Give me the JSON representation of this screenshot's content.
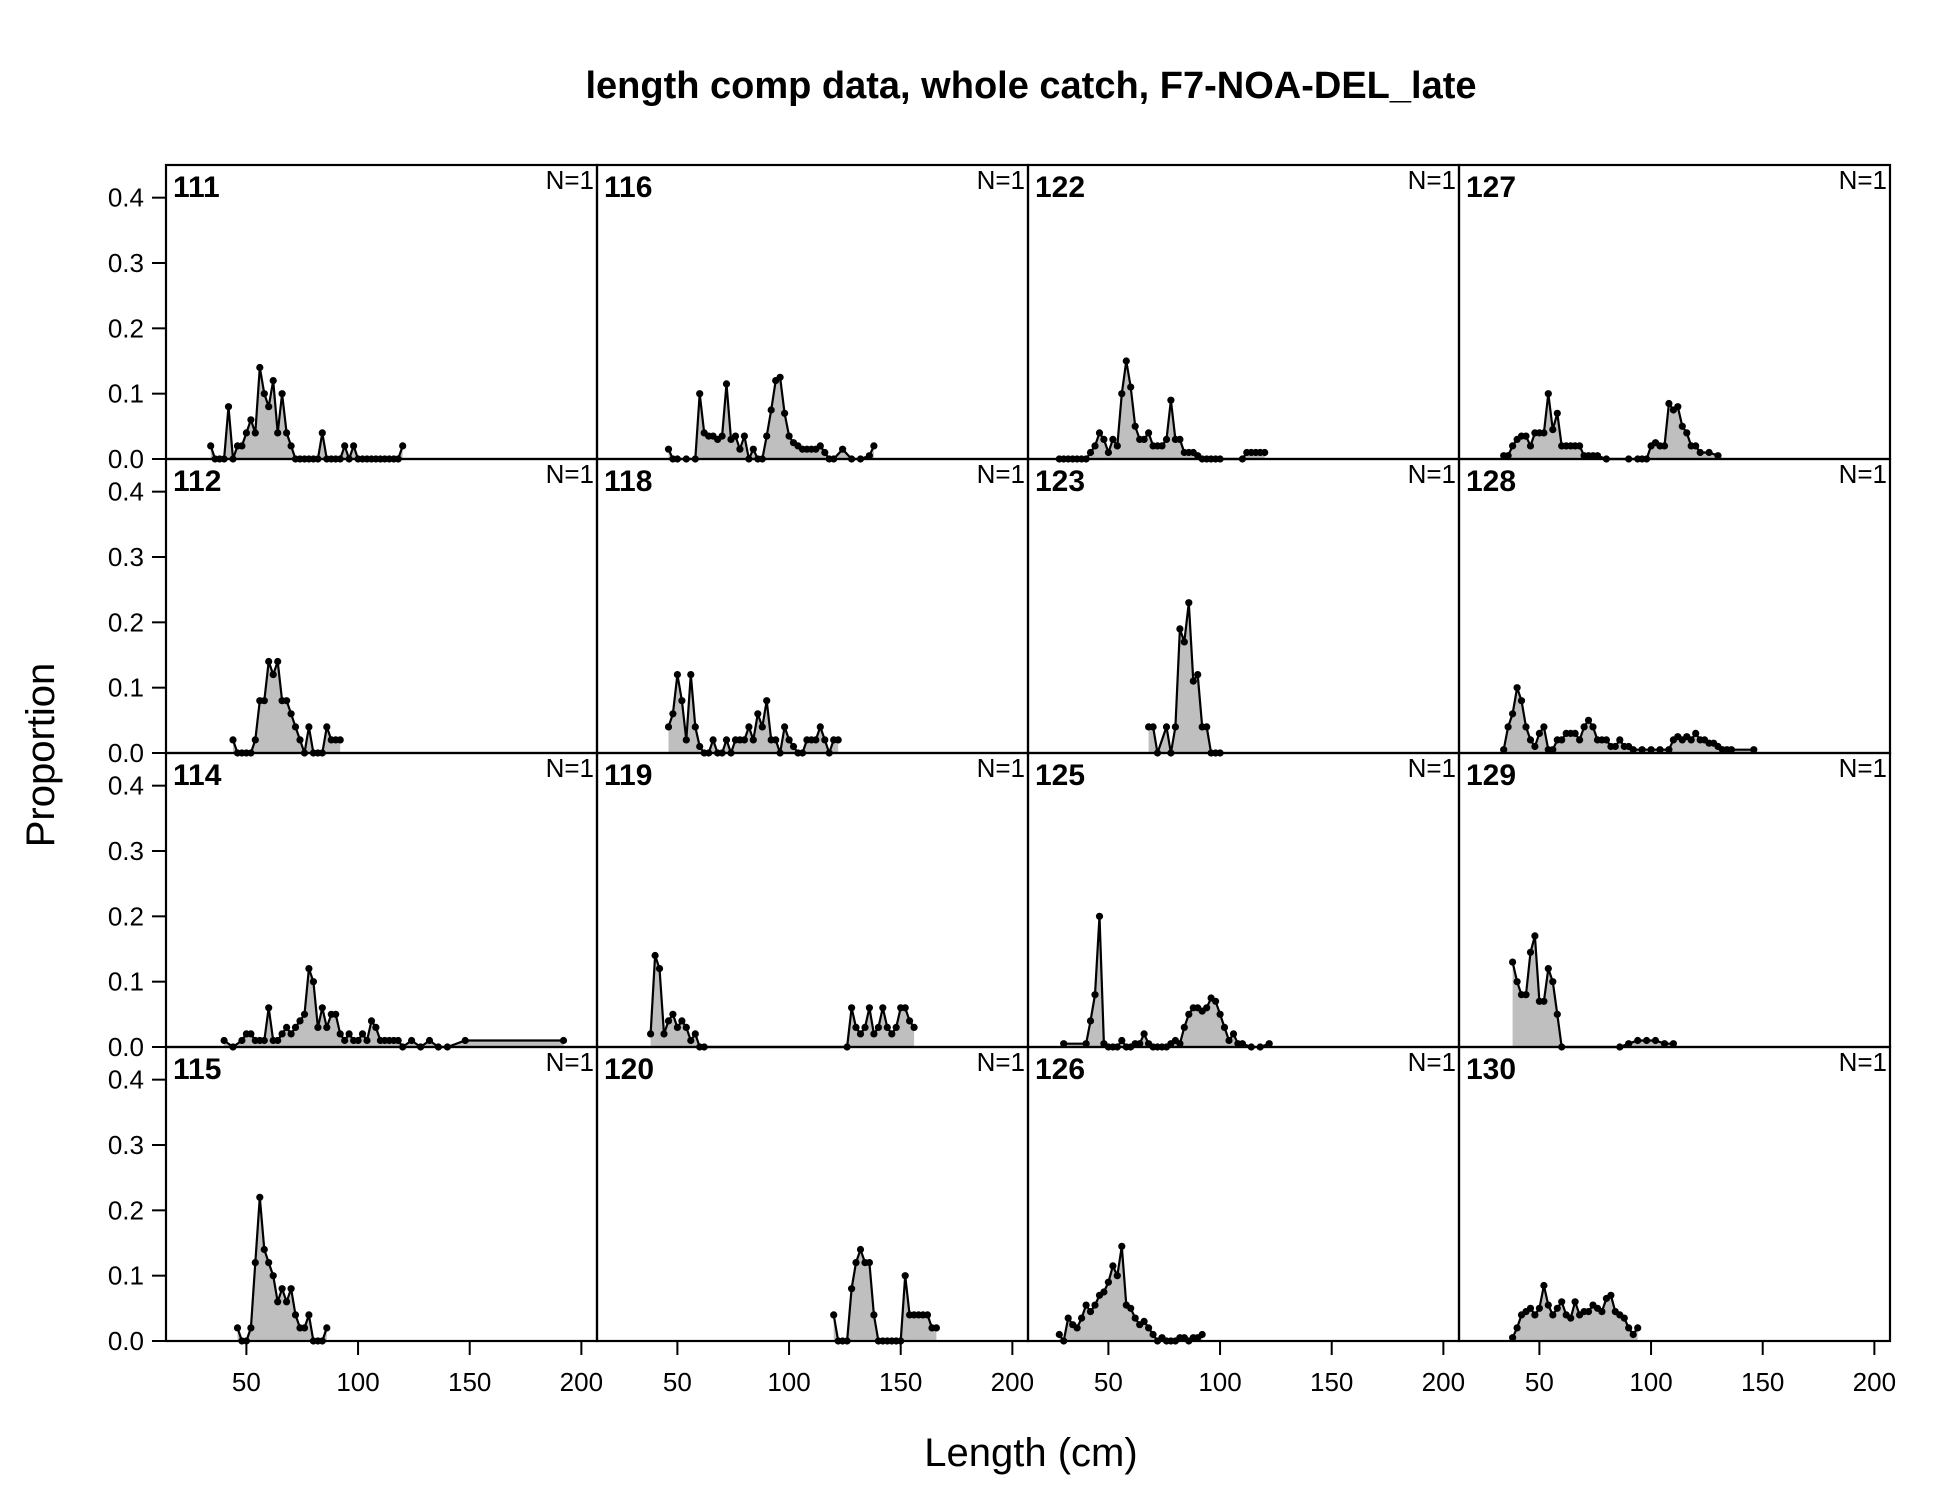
{
  "chart_data": {
    "type": "area",
    "title": "length comp data, whole catch, F7-NOA-DEL_late",
    "xlabel": "Length (cm)",
    "ylabel": "Proportion",
    "xlim": [
      14,
      207
    ],
    "ylim": [
      0,
      0.45
    ],
    "x_ticks": [
      50,
      100,
      150,
      200
    ],
    "x_tick_labels": [
      "50",
      "100",
      "150",
      "200"
    ],
    "y_ticks": [
      0,
      0.1,
      0.2,
      0.3,
      0.4
    ],
    "y_tick_labels": [
      "0.0",
      "0.1",
      "0.2",
      "0.3",
      "0.4"
    ],
    "layout": "4x4 grid, column-major",
    "fill_color": "#bfbfbf",
    "line_color": "#000000",
    "panels": [
      {
        "label": "111",
        "n_label": "N=1",
        "x": [
          34,
          36,
          38,
          40,
          42,
          44,
          46,
          48,
          50,
          52,
          54,
          56,
          58,
          60,
          62,
          64,
          66,
          68,
          70,
          72,
          74,
          76,
          78,
          80,
          82,
          84,
          86,
          88,
          90,
          92,
          94,
          96,
          98,
          100,
          102,
          104,
          106,
          108,
          110,
          112,
          114,
          116,
          118,
          120
        ],
        "y": [
          0.02,
          0,
          0,
          0,
          0.08,
          0,
          0.02,
          0.02,
          0.04,
          0.06,
          0.04,
          0.14,
          0.1,
          0.08,
          0.12,
          0.04,
          0.1,
          0.04,
          0.02,
          0,
          0,
          0,
          0,
          0,
          0,
          0.04,
          0,
          0,
          0,
          0,
          0.02,
          0,
          0.02,
          0,
          0,
          0,
          0,
          0,
          0,
          0,
          0,
          0,
          0,
          0.02
        ]
      },
      {
        "label": "112",
        "n_label": "N=1",
        "x": [
          44,
          46,
          48,
          50,
          52,
          54,
          56,
          58,
          60,
          62,
          64,
          66,
          68,
          70,
          72,
          74,
          76,
          78,
          80,
          82,
          84,
          86,
          88,
          90,
          92
        ],
        "y": [
          0.02,
          0,
          0,
          0,
          0,
          0.02,
          0.08,
          0.08,
          0.14,
          0.12,
          0.14,
          0.08,
          0.08,
          0.06,
          0.04,
          0.02,
          0,
          0.04,
          0,
          0,
          0,
          0.04,
          0.02,
          0.02,
          0.02
        ]
      },
      {
        "label": "114",
        "n_label": "N=1",
        "x": [
          40,
          44,
          48,
          50,
          52,
          54,
          56,
          58,
          60,
          62,
          64,
          66,
          68,
          70,
          72,
          74,
          76,
          78,
          80,
          82,
          84,
          86,
          88,
          90,
          92,
          94,
          96,
          98,
          100,
          102,
          104,
          106,
          108,
          110,
          112,
          114,
          116,
          118,
          120,
          124,
          128,
          132,
          136,
          140,
          148,
          192
        ],
        "y": [
          0.01,
          0,
          0.01,
          0.02,
          0.02,
          0.01,
          0.01,
          0.01,
          0.06,
          0.01,
          0.01,
          0.02,
          0.03,
          0.02,
          0.03,
          0.04,
          0.05,
          0.12,
          0.1,
          0.03,
          0.06,
          0.03,
          0.05,
          0.05,
          0.02,
          0.01,
          0.02,
          0.01,
          0.01,
          0.02,
          0.01,
          0.04,
          0.03,
          0.01,
          0.01,
          0.01,
          0.01,
          0.01,
          0,
          0.01,
          0,
          0.01,
          0,
          0,
          0.01,
          0.01
        ]
      },
      {
        "label": "115",
        "n_label": "N=1",
        "x": [
          46,
          48,
          50,
          52,
          54,
          56,
          58,
          60,
          62,
          64,
          66,
          68,
          70,
          72,
          74,
          76,
          78,
          80,
          82,
          84,
          86
        ],
        "y": [
          0.02,
          0,
          0,
          0.02,
          0.12,
          0.22,
          0.14,
          0.12,
          0.1,
          0.06,
          0.08,
          0.06,
          0.08,
          0.04,
          0.02,
          0.02,
          0.04,
          0,
          0,
          0,
          0.02
        ]
      },
      {
        "label": "116",
        "n_label": "N=1",
        "x": [
          46,
          48,
          50,
          54,
          58,
          60,
          62,
          64,
          66,
          68,
          70,
          72,
          74,
          76,
          78,
          80,
          82,
          84,
          86,
          88,
          90,
          92,
          94,
          96,
          98,
          100,
          102,
          104,
          106,
          108,
          110,
          112,
          114,
          116,
          118,
          120,
          124,
          128,
          132,
          136,
          138
        ],
        "y": [
          0.015,
          0,
          0,
          0,
          0,
          0.1,
          0.04,
          0.035,
          0.035,
          0.03,
          0.035,
          0.115,
          0.03,
          0.035,
          0.015,
          0.035,
          0,
          0.015,
          0,
          0,
          0.035,
          0.075,
          0.12,
          0.125,
          0.07,
          0.035,
          0.025,
          0.02,
          0.015,
          0.015,
          0.015,
          0.015,
          0.02,
          0.01,
          0,
          0,
          0.015,
          0,
          0,
          0.005,
          0.02
        ]
      },
      {
        "label": "118",
        "n_label": "N=1",
        "x": [
          46,
          48,
          50,
          52,
          54,
          56,
          58,
          60,
          62,
          64,
          66,
          68,
          70,
          72,
          74,
          76,
          78,
          80,
          82,
          84,
          86,
          88,
          90,
          92,
          94,
          96,
          98,
          100,
          102,
          104,
          106,
          108,
          110,
          112,
          114,
          116,
          118,
          120,
          122
        ],
        "y": [
          0.04,
          0.06,
          0.12,
          0.08,
          0.02,
          0.12,
          0.04,
          0.01,
          0,
          0,
          0.02,
          0,
          0,
          0.02,
          0,
          0.02,
          0.02,
          0.02,
          0.04,
          0.02,
          0.06,
          0.04,
          0.08,
          0.02,
          0.02,
          0,
          0.04,
          0.02,
          0.01,
          0,
          0,
          0.02,
          0.02,
          0.02,
          0.04,
          0.02,
          0,
          0.02,
          0.02
        ]
      },
      {
        "label": "119",
        "n_label": "N=1",
        "x": [
          38,
          40,
          42,
          44,
          46,
          48,
          50,
          52,
          54,
          56,
          58,
          60,
          62,
          126,
          128,
          130,
          132,
          134,
          136,
          138,
          140,
          142,
          144,
          146,
          148,
          150,
          152,
          154,
          156
        ],
        "y": [
          0.02,
          0.14,
          0.12,
          0.02,
          0.04,
          0.05,
          0.03,
          0.04,
          0.03,
          0.01,
          0.02,
          0,
          0,
          0,
          0.06,
          0.03,
          0.02,
          0.03,
          0.06,
          0.02,
          0.03,
          0.06,
          0.03,
          0.02,
          0.03,
          0.06,
          0.06,
          0.04,
          0.03
        ]
      },
      {
        "label": "120",
        "n_label": "N=1",
        "x": [
          120,
          122,
          124,
          126,
          128,
          130,
          132,
          134,
          136,
          138,
          140,
          142,
          144,
          146,
          148,
          150,
          152,
          154,
          156,
          158,
          160,
          162,
          164,
          166
        ],
        "y": [
          0.04,
          0,
          0,
          0,
          0.08,
          0.12,
          0.14,
          0.12,
          0.12,
          0.04,
          0,
          0,
          0,
          0,
          0,
          0,
          0.1,
          0.04,
          0.04,
          0.04,
          0.04,
          0.04,
          0.02,
          0.02
        ]
      },
      {
        "label": "122",
        "n_label": "N=1",
        "x": [
          28,
          30,
          32,
          34,
          36,
          38,
          40,
          42,
          44,
          46,
          48,
          50,
          52,
          54,
          56,
          58,
          60,
          62,
          64,
          66,
          68,
          70,
          72,
          74,
          76,
          78,
          80,
          82,
          84,
          86,
          88,
          90,
          92,
          94,
          96,
          98,
          100,
          110,
          112,
          114,
          116,
          118,
          120
        ],
        "y": [
          0,
          0,
          0,
          0,
          0,
          0,
          0,
          0.01,
          0.02,
          0.04,
          0.03,
          0.01,
          0.03,
          0.02,
          0.1,
          0.15,
          0.11,
          0.05,
          0.03,
          0.03,
          0.04,
          0.02,
          0.02,
          0.02,
          0.03,
          0.09,
          0.03,
          0.03,
          0.01,
          0.01,
          0.01,
          0.005,
          0,
          0,
          0,
          0,
          0,
          0,
          0.01,
          0.01,
          0.01,
          0.01,
          0.01
        ]
      },
      {
        "label": "123",
        "n_label": "N=1",
        "x": [
          68,
          70,
          72,
          76,
          78,
          80,
          82,
          84,
          86,
          88,
          90,
          92,
          94,
          96,
          98,
          100
        ],
        "y": [
          0.04,
          0.04,
          0,
          0.04,
          0,
          0.04,
          0.19,
          0.17,
          0.23,
          0.11,
          0.12,
          0.04,
          0.04,
          0,
          0,
          0
        ]
      },
      {
        "label": "125",
        "n_label": "N=1",
        "x": [
          30,
          40,
          42,
          44,
          46,
          48,
          50,
          52,
          54,
          56,
          58,
          60,
          62,
          64,
          66,
          68,
          70,
          72,
          74,
          76,
          78,
          80,
          82,
          84,
          86,
          88,
          90,
          92,
          94,
          96,
          98,
          100,
          102,
          104,
          106,
          108,
          110,
          114,
          118,
          122
        ],
        "y": [
          0.005,
          0.005,
          0.04,
          0.08,
          0.2,
          0.005,
          0,
          0,
          0,
          0.01,
          0,
          0,
          0.005,
          0.005,
          0.02,
          0.005,
          0,
          0,
          0,
          0,
          0.005,
          0.01,
          0.005,
          0.03,
          0.05,
          0.06,
          0.06,
          0.055,
          0.06,
          0.075,
          0.07,
          0.05,
          0.03,
          0.01,
          0.02,
          0.005,
          0.005,
          0,
          0,
          0.005
        ]
      },
      {
        "label": "126",
        "n_label": "N=1",
        "x": [
          28,
          30,
          32,
          34,
          36,
          38,
          40,
          42,
          44,
          46,
          48,
          50,
          52,
          54,
          56,
          58,
          60,
          62,
          64,
          66,
          68,
          70,
          72,
          74,
          76,
          78,
          80,
          82,
          84,
          86,
          88,
          90,
          92
        ],
        "y": [
          0.01,
          0,
          0.035,
          0.025,
          0.02,
          0.035,
          0.055,
          0.045,
          0.055,
          0.07,
          0.075,
          0.09,
          0.115,
          0.1,
          0.145,
          0.055,
          0.05,
          0.035,
          0.025,
          0.03,
          0.02,
          0.01,
          0,
          0.005,
          0,
          0,
          0,
          0.005,
          0.005,
          0,
          0.005,
          0.005,
          0.01
        ]
      },
      {
        "label": "127",
        "n_label": "N=1",
        "x": [
          34,
          36,
          38,
          40,
          42,
          44,
          46,
          48,
          50,
          52,
          54,
          56,
          58,
          60,
          62,
          64,
          66,
          68,
          70,
          72,
          74,
          76,
          80,
          90,
          94,
          96,
          98,
          100,
          102,
          104,
          106,
          108,
          110,
          112,
          114,
          116,
          118,
          120,
          122,
          126,
          130
        ],
        "y": [
          0.005,
          0.005,
          0.02,
          0.03,
          0.035,
          0.035,
          0.02,
          0.04,
          0.04,
          0.04,
          0.1,
          0.045,
          0.07,
          0.02,
          0.02,
          0.02,
          0.02,
          0.02,
          0.005,
          0.005,
          0.005,
          0.005,
          0,
          0,
          0,
          0,
          0,
          0.02,
          0.025,
          0.02,
          0.02,
          0.085,
          0.075,
          0.08,
          0.05,
          0.04,
          0.02,
          0.02,
          0.01,
          0.01,
          0.005
        ]
      },
      {
        "label": "128",
        "n_label": "N=1",
        "x": [
          34,
          36,
          38,
          40,
          42,
          44,
          46,
          48,
          50,
          52,
          54,
          56,
          58,
          60,
          62,
          64,
          66,
          68,
          70,
          72,
          74,
          76,
          78,
          80,
          82,
          84,
          86,
          88,
          90,
          92,
          96,
          100,
          104,
          108,
          110,
          112,
          114,
          116,
          118,
          120,
          122,
          124,
          126,
          128,
          130,
          132,
          134,
          136,
          146
        ],
        "y": [
          0.005,
          0.04,
          0.06,
          0.1,
          0.08,
          0.04,
          0.02,
          0.01,
          0.03,
          0.04,
          0.005,
          0.005,
          0.02,
          0.02,
          0.03,
          0.03,
          0.03,
          0.02,
          0.04,
          0.05,
          0.04,
          0.02,
          0.02,
          0.02,
          0.01,
          0.01,
          0.02,
          0.01,
          0.01,
          0.005,
          0.005,
          0.005,
          0.005,
          0.005,
          0.02,
          0.025,
          0.02,
          0.025,
          0.02,
          0.03,
          0.02,
          0.02,
          0.015,
          0.015,
          0.01,
          0.005,
          0.005,
          0.005,
          0.005
        ]
      },
      {
        "label": "129",
        "n_label": "N=1",
        "x": [
          38,
          40,
          42,
          44,
          46,
          48,
          50,
          52,
          54,
          56,
          58,
          60,
          86,
          90,
          94,
          98,
          102,
          106,
          110
        ],
        "y": [
          0.13,
          0.1,
          0.08,
          0.08,
          0.145,
          0.17,
          0.07,
          0.07,
          0.12,
          0.1,
          0.05,
          0,
          0,
          0.005,
          0.01,
          0.01,
          0.01,
          0.005,
          0.005
        ]
      },
      {
        "label": "130",
        "n_label": "N=1",
        "x": [
          38,
          40,
          42,
          44,
          46,
          48,
          50,
          52,
          54,
          56,
          58,
          60,
          62,
          64,
          66,
          68,
          70,
          72,
          74,
          76,
          78,
          80,
          82,
          84,
          86,
          88,
          90,
          92,
          94
        ],
        "y": [
          0.005,
          0.02,
          0.04,
          0.045,
          0.05,
          0.04,
          0.05,
          0.085,
          0.055,
          0.04,
          0.05,
          0.06,
          0.04,
          0.035,
          0.06,
          0.04,
          0.045,
          0.045,
          0.055,
          0.05,
          0.045,
          0.065,
          0.07,
          0.045,
          0.04,
          0.035,
          0.02,
          0.01,
          0.02
        ]
      }
    ]
  }
}
